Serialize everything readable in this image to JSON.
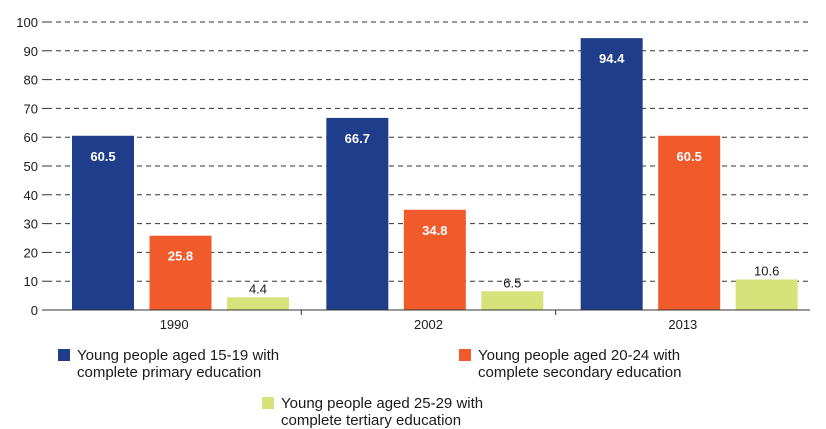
{
  "chart_data": {
    "type": "bar",
    "title": "",
    "xlabel": "",
    "ylabel": "",
    "ylim": [
      0,
      100
    ],
    "yticks": [
      0,
      10,
      20,
      30,
      40,
      50,
      60,
      70,
      80,
      90,
      100
    ],
    "categories": [
      "1990",
      "2002",
      "2013"
    ],
    "grid": "horizontal-dashed",
    "legend_position": "bottom",
    "series": [
      {
        "name": "Young people aged 15-19 with complete primary education",
        "legend_lines": [
          "Young people aged 15-19 with",
          "complete primary education"
        ],
        "color": "#1f3d8a",
        "label_color": "#ffffff",
        "values": [
          60.5,
          66.7,
          94.4
        ]
      },
      {
        "name": "Young people aged 20-24 with complete secondary education",
        "legend_lines": [
          "Young people aged 20-24 with",
          "complete secondary education"
        ],
        "color": "#f15a2b",
        "label_color": "#ffffff",
        "values": [
          25.8,
          34.8,
          60.5
        ]
      },
      {
        "name": "Young people aged 25-29 with complete tertiary education",
        "legend_lines": [
          "Young people aged 25-29 with",
          "complete tertiary education"
        ],
        "color": "#d6e37a",
        "label_color": "#1a1a1a",
        "values": [
          4.4,
          6.5,
          10.6
        ]
      }
    ]
  }
}
